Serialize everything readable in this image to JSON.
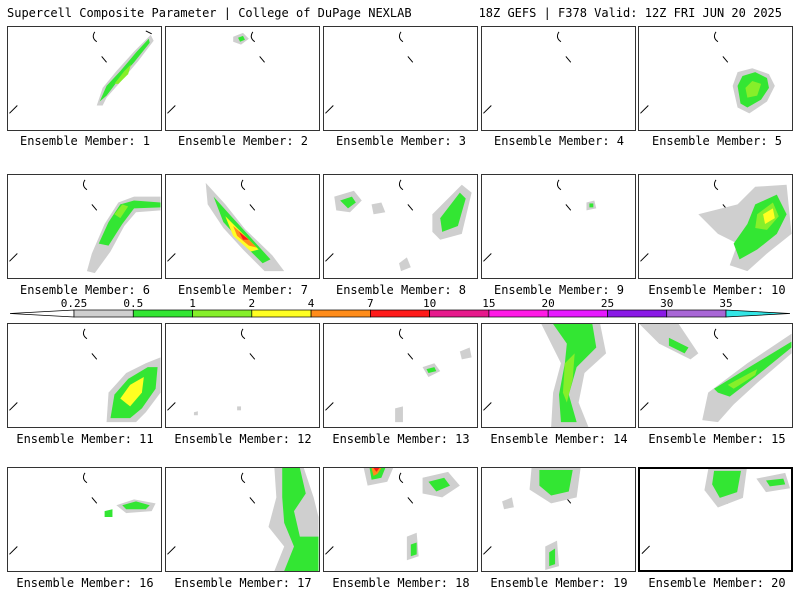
{
  "header": {
    "title_left": "Supercell Composite Parameter | College of DuPage NEXLAB",
    "title_right": "18Z GEFS | F378 Valid: 12Z FRI JUN 20 2025"
  },
  "colorbar": {
    "ticks": [
      "0.25",
      "0.5",
      "1",
      "2",
      "4",
      "7",
      "10",
      "15",
      "20",
      "25",
      "30",
      "35"
    ],
    "colors": [
      "#cfcfcf",
      "#33e633",
      "#86ef2a",
      "#ffff22",
      "#ff8c1a",
      "#ff1a1a",
      "#e6198c",
      "#ff19e6",
      "#e619ff",
      "#8a19e6",
      "#a866d6",
      "#33e6e6"
    ]
  },
  "panels": [
    {
      "label": "Ensemble Member: 1"
    },
    {
      "label": "Ensemble Member: 2"
    },
    {
      "label": "Ensemble Member: 3"
    },
    {
      "label": "Ensemble Member: 4"
    },
    {
      "label": "Ensemble Member: 5"
    },
    {
      "label": "Ensemble Member: 6"
    },
    {
      "label": "Ensemble Member: 7"
    },
    {
      "label": "Ensemble Member: 8"
    },
    {
      "label": "Ensemble Member: 9"
    },
    {
      "label": "Ensemble Member: 10"
    },
    {
      "label": "Ensemble Member: 11"
    },
    {
      "label": "Ensemble Member: 12"
    },
    {
      "label": "Ensemble Member: 13"
    },
    {
      "label": "Ensemble Member: 14"
    },
    {
      "label": "Ensemble Member: 15"
    },
    {
      "label": "Ensemble Member: 16"
    },
    {
      "label": "Ensemble Member: 17"
    },
    {
      "label": "Ensemble Member: 18"
    },
    {
      "label": "Ensemble Member: 19"
    },
    {
      "label": "Ensemble Member: 20"
    }
  ]
}
